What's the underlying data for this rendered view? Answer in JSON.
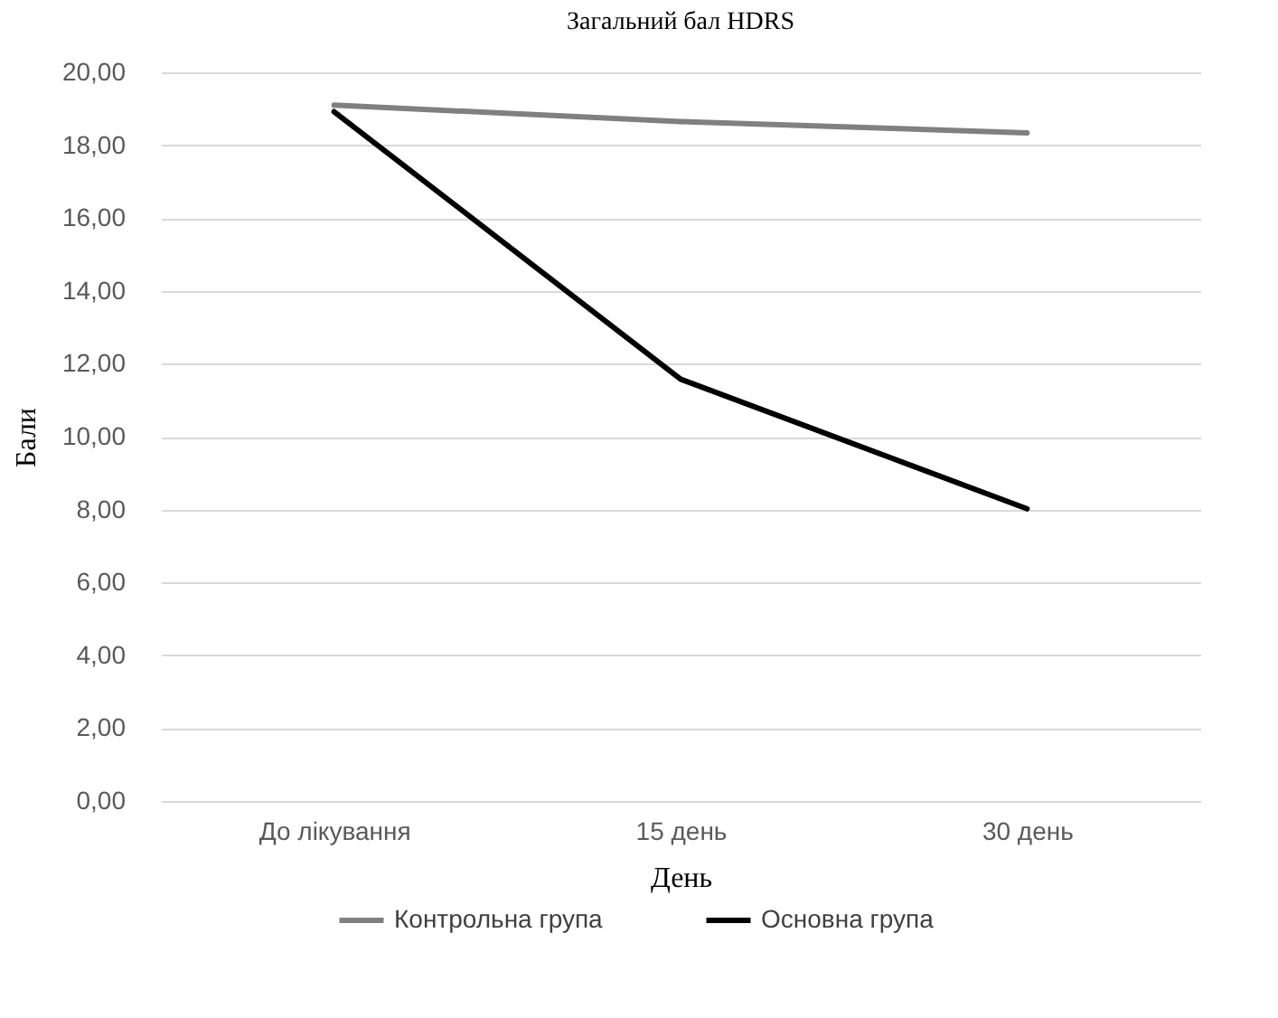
{
  "chart_data": {
    "type": "line",
    "title": "Загальний бал HDRS",
    "xlabel": "День",
    "ylabel": "Бали",
    "categories": [
      "До лікування",
      "15 день",
      "30 день"
    ],
    "series": [
      {
        "name": "Контрольна група",
        "color": "#808080",
        "values": [
          19.1,
          18.65,
          18.34
        ]
      },
      {
        "name": "Основна група",
        "color": "#000000",
        "values": [
          18.92,
          11.58,
          8.02
        ]
      }
    ],
    "ylim": [
      0,
      20
    ],
    "yticks": [
      {
        "value": 0,
        "label": "0,00"
      },
      {
        "value": 2,
        "label": "2,00"
      },
      {
        "value": 4,
        "label": "4,00"
      },
      {
        "value": 6,
        "label": "6,00"
      },
      {
        "value": 8,
        "label": "8,00"
      },
      {
        "value": 10,
        "label": "10,00"
      },
      {
        "value": 12,
        "label": "12,00"
      },
      {
        "value": 14,
        "label": "14,00"
      },
      {
        "value": 16,
        "label": "16,00"
      },
      {
        "value": 18,
        "label": "18,00"
      },
      {
        "value": 20,
        "label": "20,00"
      }
    ],
    "grid": "y",
    "legend": "bottom",
    "marker": "none",
    "line_style": "solid"
  }
}
